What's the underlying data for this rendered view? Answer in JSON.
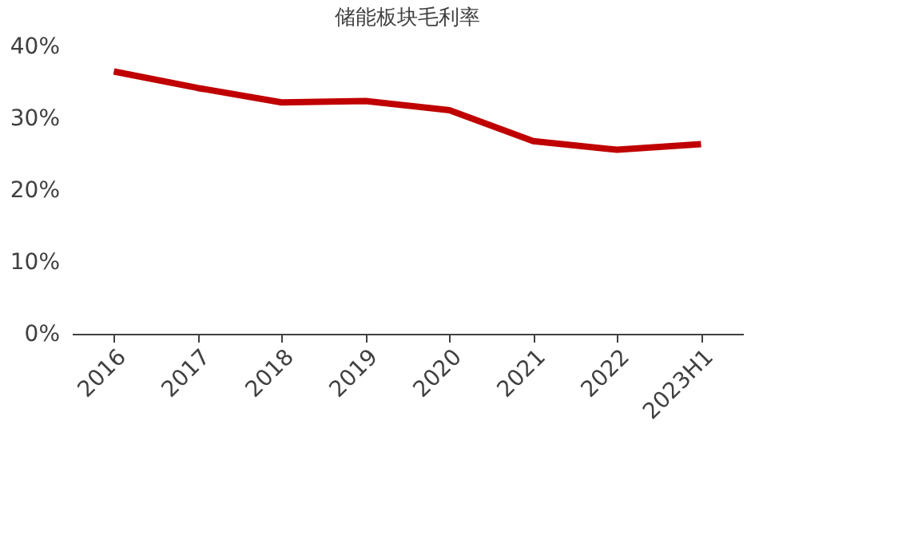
{
  "chart_data": {
    "type": "line",
    "title": "储能板块毛利率",
    "categories": [
      "2016",
      "2017",
      "2018",
      "2019",
      "2020",
      "2021",
      "2022",
      "2023H1"
    ],
    "series": [
      {
        "color": "#c00000",
        "values": [
          36.5,
          34.2,
          32.2,
          32.4,
          31.1,
          26.8,
          25.6,
          26.4
        ]
      }
    ],
    "ylim": [
      0,
      40
    ],
    "yticks": [
      {
        "value": 0,
        "label": "0%"
      },
      {
        "value": 10,
        "label": "10%"
      },
      {
        "value": 20,
        "label": "20%"
      },
      {
        "value": 30,
        "label": "30%"
      },
      {
        "value": 40,
        "label": "40%"
      }
    ],
    "grid": false,
    "marker": "none",
    "line_style": "solid"
  }
}
